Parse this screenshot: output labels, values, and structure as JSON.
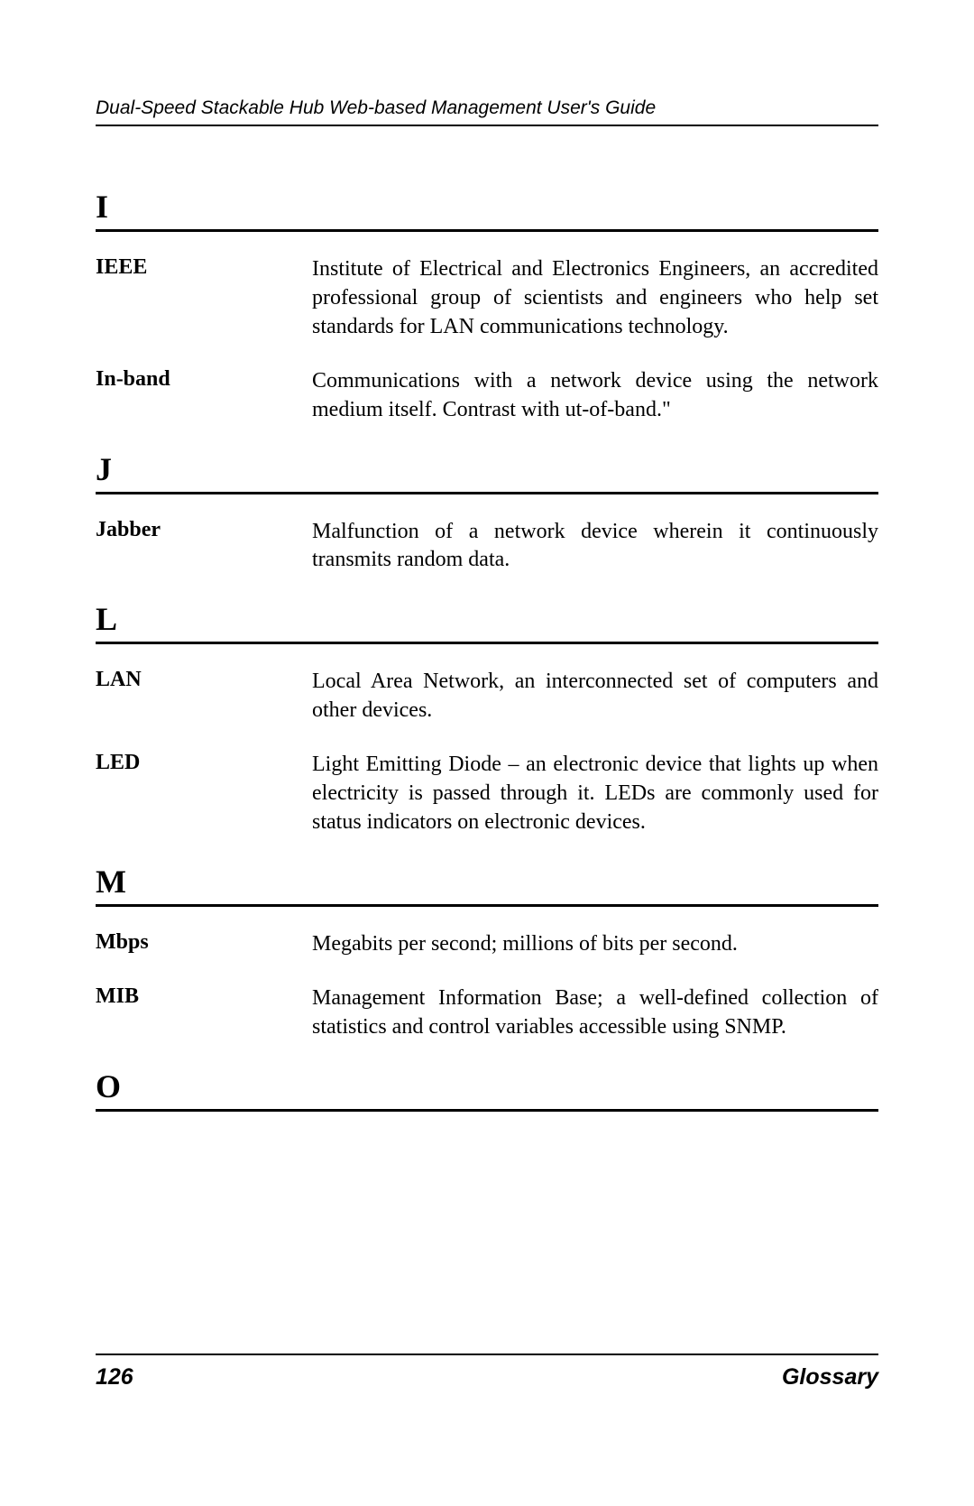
{
  "header": {
    "title": "Dual-Speed Stackable Hub Web-based Management User's Guide"
  },
  "glossary": [
    {
      "letter": "I",
      "entries": [
        {
          "term": "IEEE",
          "definition": "Institute of Electrical and Electronics Engineers, an accredited professional group of scientists and engineers who help set standards for LAN communications technology."
        },
        {
          "term": "In-band",
          "definition": "Communications with a network device using the network medium itself.  Contrast with    ut-of-band.\""
        }
      ]
    },
    {
      "letter": "J",
      "entries": [
        {
          "term": "Jabber",
          "definition": "Malfunction of a network device wherein it continuously transmits random data."
        }
      ]
    },
    {
      "letter": "L",
      "entries": [
        {
          "term": "LAN",
          "definition": "Local Area Network, an interconnected set of computers and other devices."
        },
        {
          "term": "LED",
          "definition": "Light Emitting Diode – an electronic device that lights up when electricity is passed through it. LEDs are commonly used for status indicators on electronic devices."
        }
      ]
    },
    {
      "letter": "M",
      "entries": [
        {
          "term": "Mbps",
          "definition": "Megabits per second; millions of bits per second."
        },
        {
          "term": "MIB",
          "definition": "Management Information Base; a well-defined collection of statistics and control variables accessible using SNMP."
        }
      ]
    },
    {
      "letter": "O",
      "entries": []
    }
  ],
  "footer": {
    "page": "126",
    "section": "Glossary"
  }
}
